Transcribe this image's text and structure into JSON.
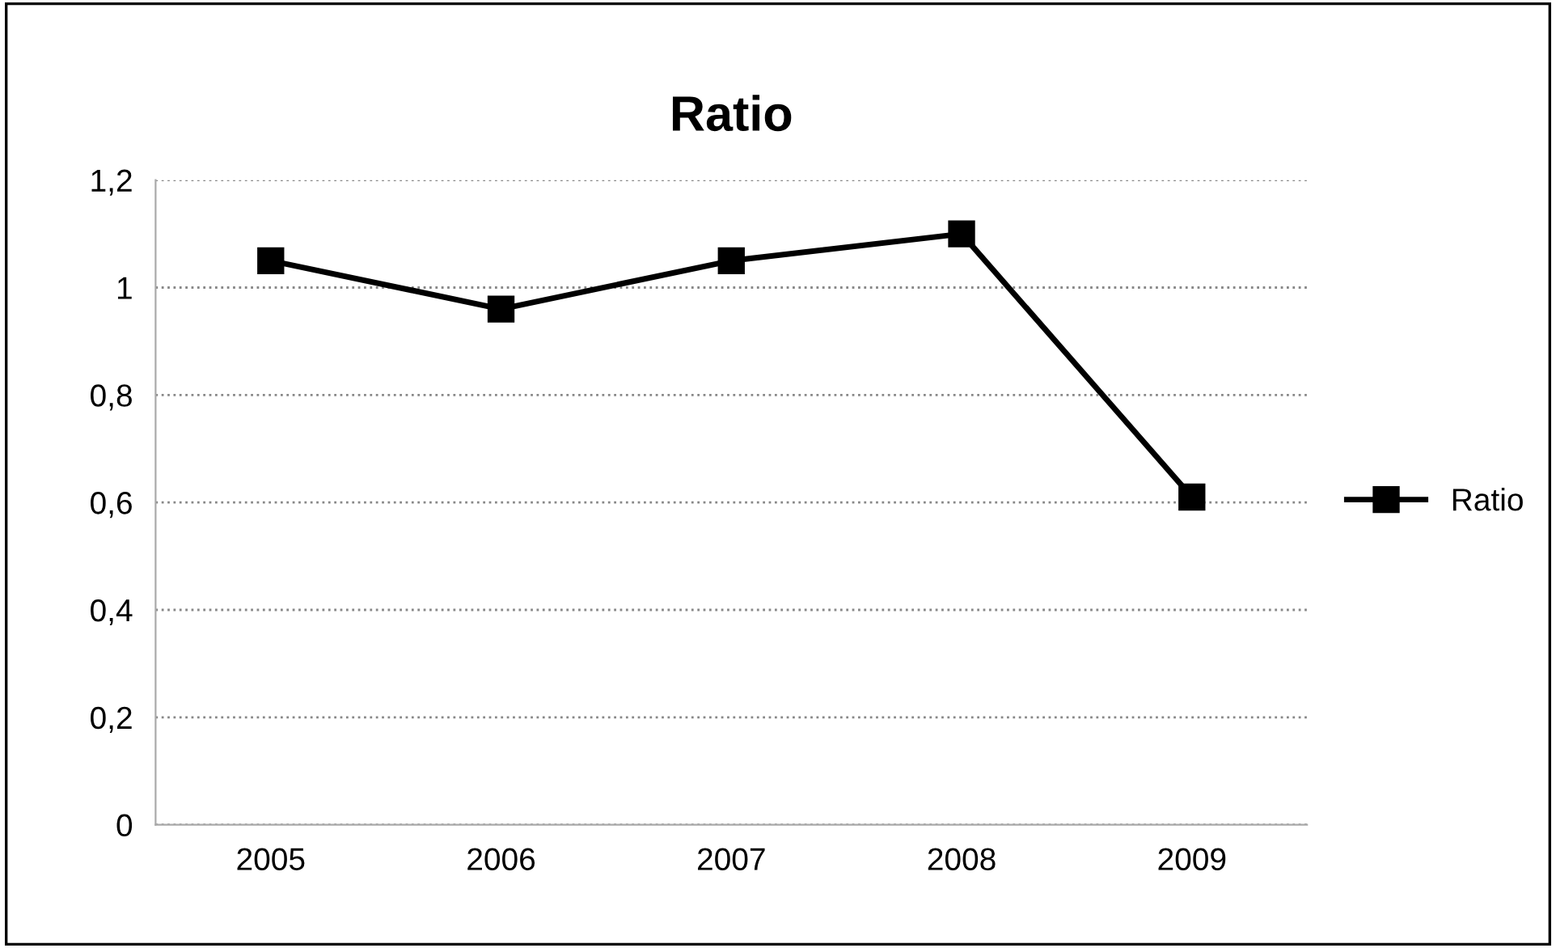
{
  "chart_data": {
    "type": "line",
    "title": "Ratio",
    "categories": [
      "2005",
      "2006",
      "2007",
      "2008",
      "2009"
    ],
    "series": [
      {
        "name": "Ratio",
        "color": "#000000",
        "values": [
          1.05,
          0.96,
          1.05,
          1.1,
          0.61
        ]
      }
    ],
    "ylim": [
      0,
      1.2
    ],
    "yticks": [
      {
        "value": 0,
        "label": "0"
      },
      {
        "value": 0.2,
        "label": "0,2"
      },
      {
        "value": 0.4,
        "label": "0,4"
      },
      {
        "value": 0.6,
        "label": "0,6"
      },
      {
        "value": 0.8,
        "label": "0,8"
      },
      {
        "value": 1,
        "label": "1"
      },
      {
        "value": 1.2,
        "label": "1,2"
      }
    ],
    "grid": "y",
    "legend": "right",
    "marker": "square",
    "line_style": "solid"
  }
}
